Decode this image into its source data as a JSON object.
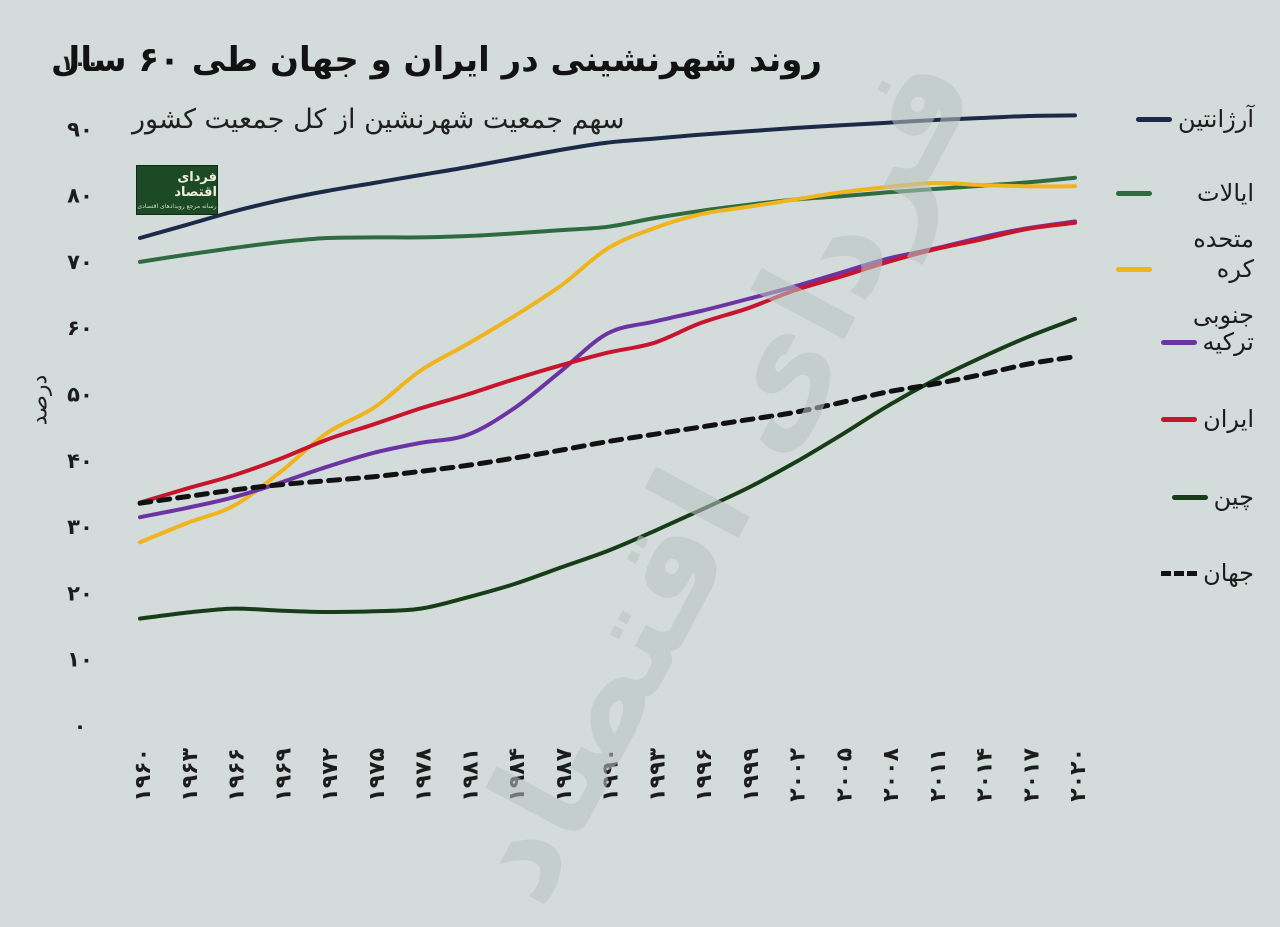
{
  "title": "روند شهرنشینی در ایران و جهان طی ۶۰ سال",
  "subtitle": "سهم جمعیت شهرنشین از کل جمعیت کشور",
  "logo": {
    "main": "فردای اقتصاد",
    "sub": "رسانه مرجع رویدادهای اقتصادی"
  },
  "watermark": "فردای اقتصاد",
  "chart_data": {
    "type": "line",
    "title": "روند شهرنشینی در ایران و جهان طی ۶۰ سال",
    "subtitle": "سهم جمعیت شهرنشین از کل جمعیت کشور",
    "xlabel": "",
    "ylabel": "درصد",
    "ylim": [
      0,
      100
    ],
    "yticks": [
      "۰",
      "۱۰",
      "۲۰",
      "۳۰",
      "۴۰",
      "۵۰",
      "۶۰",
      "۷۰",
      "۸۰",
      "۹۰",
      "۱۰۰"
    ],
    "ytick_values": [
      0,
      10,
      20,
      30,
      40,
      50,
      60,
      70,
      80,
      90,
      100
    ],
    "x": [
      1960,
      1963,
      1966,
      1969,
      1972,
      1975,
      1978,
      1981,
      1984,
      1987,
      1990,
      1993,
      1996,
      1999,
      2002,
      2005,
      2008,
      2011,
      2014,
      2017,
      2020
    ],
    "xticks": [
      "۱۹۶۰",
      "۱۹۶۳",
      "۱۹۶۶",
      "۱۹۶۹",
      "۱۹۷۲",
      "۱۹۷۵",
      "۱۹۷۸",
      "۱۹۸۱",
      "۱۹۸۴",
      "۱۹۸۷",
      "۱۹۹۰",
      "۱۹۹۳",
      "۱۹۹۶",
      "۱۹۹۹",
      "۲۰۰۲",
      "۲۰۰۵",
      "۲۰۰۸",
      "۲۰۱۱",
      "۲۰۱۴",
      "۲۰۱۷",
      "۲۰۲۰"
    ],
    "grid": false,
    "legend_position": "right",
    "series": [
      {
        "name": "آرژانتین",
        "color": "#1b2a48",
        "dashed": false,
        "values": [
          73.6,
          75.6,
          77.6,
          79.3,
          80.7,
          81.9,
          83.1,
          84.3,
          85.6,
          86.9,
          88.0,
          88.6,
          89.2,
          89.7,
          90.2,
          90.6,
          91.0,
          91.4,
          91.7,
          92.0,
          92.1
        ]
      },
      {
        "name": "ایالات متحده",
        "color": "#2e6b3f",
        "dashed": false,
        "values": [
          70.0,
          71.1,
          72.1,
          73.0,
          73.6,
          73.7,
          73.7,
          73.9,
          74.3,
          74.8,
          75.3,
          76.6,
          77.7,
          78.6,
          79.4,
          79.9,
          80.5,
          81.0,
          81.5,
          82.0,
          82.7
        ]
      },
      {
        "name": "کره جنوبی",
        "color": "#f0b41c",
        "dashed": false,
        "values": [
          27.7,
          30.6,
          33.2,
          38.3,
          44.2,
          48.0,
          53.6,
          57.6,
          61.8,
          66.4,
          72.0,
          75.1,
          77.2,
          78.3,
          79.4,
          80.5,
          81.3,
          81.9,
          81.6,
          81.4,
          81.4
        ]
      },
      {
        "name": "ترکیه",
        "color": "#6c33a3",
        "dashed": false,
        "values": [
          31.5,
          32.9,
          34.5,
          36.7,
          39.1,
          41.2,
          42.7,
          43.9,
          47.9,
          53.5,
          59.2,
          61.0,
          62.6,
          64.4,
          66.3,
          68.4,
          70.5,
          72.0,
          73.7,
          75.1,
          76.1
        ]
      },
      {
        "name": "ایران",
        "color": "#c8152d",
        "dashed": false,
        "values": [
          33.7,
          35.8,
          37.8,
          40.3,
          43.2,
          45.5,
          47.9,
          50.0,
          52.3,
          54.4,
          56.3,
          57.8,
          60.8,
          63.0,
          65.7,
          67.8,
          70.0,
          71.9,
          73.4,
          75.0,
          75.9
        ]
      },
      {
        "name": "چین",
        "color": "#173d18",
        "dashed": false,
        "values": [
          16.2,
          17.1,
          17.7,
          17.4,
          17.2,
          17.3,
          17.7,
          19.4,
          21.4,
          23.9,
          26.4,
          29.4,
          32.6,
          35.9,
          39.7,
          43.9,
          48.3,
          52.2,
          55.6,
          58.7,
          61.4
        ]
      },
      {
        "name": "جهان",
        "color": "#111111",
        "dashed": true,
        "values": [
          33.6,
          34.6,
          35.6,
          36.4,
          37.0,
          37.6,
          38.4,
          39.3,
          40.4,
          41.6,
          42.9,
          44.0,
          45.1,
          46.2,
          47.3,
          48.8,
          50.4,
          51.6,
          53.0,
          54.6,
          55.7
        ]
      }
    ]
  }
}
